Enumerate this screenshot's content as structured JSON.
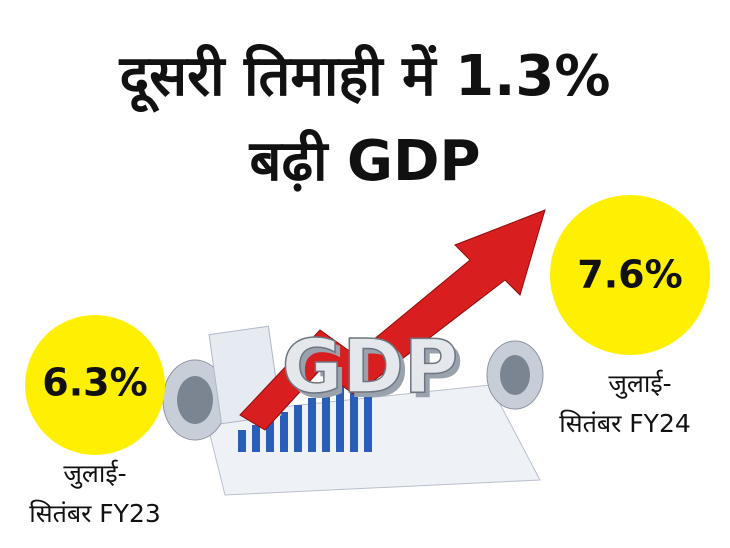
{
  "header": {
    "title_lines": [
      "दूसरी तिमाही में 1.3%",
      "बढ़ी GDP"
    ]
  },
  "illustration": {
    "text": "GDP"
  },
  "items": [
    {
      "value": "6.3%",
      "label_lines": [
        "जुलाई-",
        "सितंबर FY23"
      ]
    },
    {
      "value": "7.6%",
      "label_lines": [
        "जुलाई-",
        "सितंबर FY24"
      ]
    }
  ]
}
